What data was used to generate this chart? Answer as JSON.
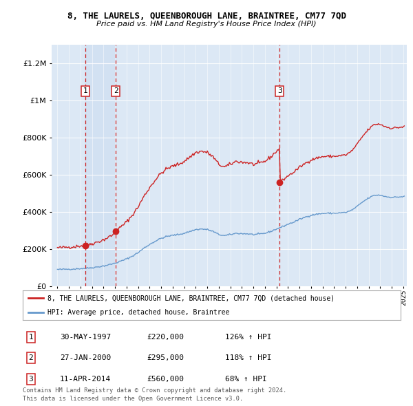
{
  "title": "8, THE LAURELS, QUEENBOROUGH LANE, BRAINTREE, CM77 7QD",
  "subtitle": "Price paid vs. HM Land Registry's House Price Index (HPI)",
  "ylim": [
    0,
    1300000
  ],
  "yticks": [
    0,
    200000,
    400000,
    600000,
    800000,
    1000000,
    1200000
  ],
  "legend_line1": "8, THE LAURELS, QUEENBOROUGH LANE, BRAINTREE, CM77 7QD (detached house)",
  "legend_line2": "HPI: Average price, detached house, Braintree",
  "hpi_color": "#6699cc",
  "price_color": "#cc2222",
  "table_entries": [
    {
      "num": 1,
      "date": "30-MAY-1997",
      "price": "£220,000",
      "hpi": "126% ↑ HPI"
    },
    {
      "num": 2,
      "date": "27-JAN-2000",
      "price": "£295,000",
      "hpi": "118% ↑ HPI"
    },
    {
      "num": 3,
      "date": "11-APR-2014",
      "price": "£560,000",
      "hpi": "68% ↑ HPI"
    }
  ],
  "footnote1": "Contains HM Land Registry data © Crown copyright and database right 2024.",
  "footnote2": "This data is licensed under the Open Government Licence v3.0.",
  "sale_dates": [
    1997.41,
    2000.07,
    2014.27
  ],
  "sale_prices": [
    220000,
    295000,
    560000
  ],
  "sale_labels": [
    1,
    2,
    3
  ],
  "xlim": [
    1994.5,
    2025.3
  ],
  "xticks": [
    1995,
    1996,
    1997,
    1998,
    1999,
    2000,
    2001,
    2002,
    2003,
    2004,
    2005,
    2006,
    2007,
    2008,
    2009,
    2010,
    2011,
    2012,
    2013,
    2014,
    2015,
    2016,
    2017,
    2018,
    2019,
    2020,
    2021,
    2022,
    2023,
    2024,
    2025
  ],
  "bg_color": "#dce8f5",
  "shade_color": "#ccddf0"
}
